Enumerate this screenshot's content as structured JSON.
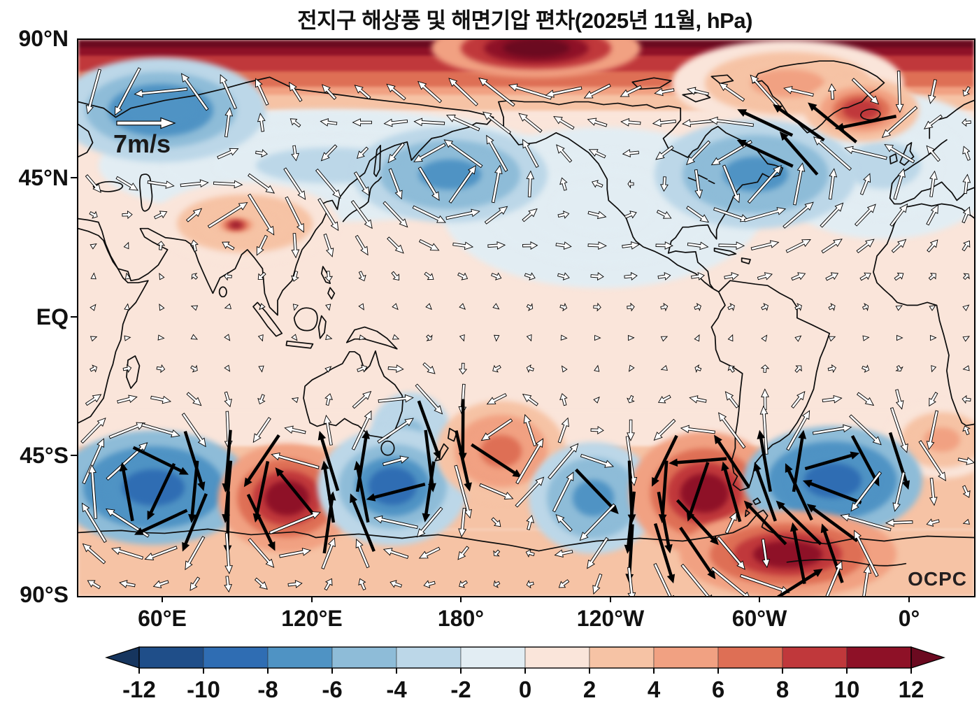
{
  "title": "전지구 해상풍 및 해면기압 편차(2025년 11월, hPa)",
  "map": {
    "source_label": "OCPC",
    "reference_vector_label": "7m/s"
  },
  "axes": {
    "lat_ticks": [
      "90°N",
      "45°N",
      "EQ",
      "45°S",
      "90°S"
    ],
    "lon_ticks": [
      "60°E",
      "120°E",
      "180°",
      "120°W",
      "60°W",
      "0°"
    ]
  },
  "colorbar": {
    "unit": "hPa",
    "levels": [
      -12,
      -10,
      -8,
      -6,
      -4,
      -2,
      0,
      2,
      4,
      6,
      8,
      10,
      12
    ],
    "tick_labels": [
      "-12",
      "-10",
      "-8",
      "-6",
      "-4",
      "-2",
      "0",
      "2",
      "4",
      "6",
      "8",
      "10",
      "12"
    ],
    "colors": [
      "#16355e",
      "#1f4e89",
      "#2f6db3",
      "#4f93c4",
      "#8ebcd8",
      "#bcd7e8",
      "#e2edf3",
      "#fae5da",
      "#f6c3a5",
      "#f1a182",
      "#de6f55",
      "#c0383b",
      "#8e1127",
      "#6b0a20"
    ]
  },
  "chart_data": {
    "type": "heatmap",
    "title": "전지구 해상풍 및 해면기압 편차(2025년 11월, hPa)",
    "variable": "sea level pressure anomaly (hPa) with sea-surface wind anomaly vectors",
    "period": "2025년 11월",
    "units": "hPa",
    "value_range": [
      -12,
      12
    ],
    "legend_position": "bottom",
    "grid": false,
    "lat_ticks": [
      "90°N",
      "45°N",
      "EQ",
      "45°S",
      "90°S"
    ],
    "lon_ticks": [
      "60°E",
      "120°E",
      "180°",
      "120°W",
      "60°W",
      "0°"
    ],
    "wind_reference_speed_ms": 7,
    "bands": [
      {
        "id": "arctic-high-band",
        "y0_pct": 0,
        "y1_pct": 14.1,
        "value_from": 13,
        "value_to": 0.5
      },
      {
        "id": "southern-ocean-salmon-band",
        "y0_pct": 66.7,
        "y1_pct": 88.1,
        "value_from": 1.5,
        "value_to": 3
      },
      {
        "id": "antarctic-high-band",
        "y0_pct": 88.1,
        "y1_pct": 100,
        "value_from": 3.5,
        "value_to": 3.5
      }
    ],
    "anomaly_centers": [
      {
        "id": "siberia-low-weak",
        "x_pct": 28.1,
        "y_pct": 22.6,
        "rx_pct": 25.8,
        "ry_pct": 10.1,
        "value_hpa": -2.5
      },
      {
        "id": "ne-pacific-low-weak",
        "x_pct": 58.5,
        "y_pct": 30.2,
        "rx_pct": 18.0,
        "ry_pct": 14.5,
        "value_hpa": -2
      },
      {
        "id": "europe-low-weak",
        "x_pct": 89.8,
        "y_pct": 22.6,
        "rx_pct": 13.3,
        "ry_pct": 13.2,
        "value_hpa": -2.5
      },
      {
        "id": "greenland-high",
        "x_pct": 79.2,
        "y_pct": 7.8,
        "rx_pct": 12.9,
        "ry_pct": 7.8,
        "value_hpa": 4
      },
      {
        "id": "central-asia-high",
        "x_pct": 18.6,
        "y_pct": 33.0,
        "rx_pct": 10.5,
        "ry_pct": 7.3,
        "value_hpa": 3.5
      },
      {
        "id": "south-africa-high-weak",
        "x_pct": 96.4,
        "y_pct": 71.9,
        "rx_pct": 6.4,
        "ry_pct": 7.0,
        "value_hpa": 4
      },
      {
        "id": "tasman-low-weak",
        "x_pct": 37.1,
        "y_pct": 70.7,
        "rx_pct": 4.5,
        "ry_pct": 7.3,
        "value_hpa": -5
      },
      {
        "id": "barents-scandinavia-low",
        "x_pct": 9.2,
        "y_pct": 12.6,
        "rx_pct": 11.7,
        "ry_pct": 9.4,
        "value_hpa": -8
      },
      {
        "id": "north-pacific-low",
        "x_pct": 41.5,
        "y_pct": 24.2,
        "rx_pct": 10.9,
        "ry_pct": 8.6,
        "value_hpa": -6.5
      },
      {
        "id": "northwest-atlantic-low",
        "x_pct": 75.6,
        "y_pct": 24.2,
        "rx_pct": 11.3,
        "ry_pct": 9.8,
        "value_hpa": -7.5
      },
      {
        "id": "iceland-greenland-high",
        "x_pct": 87.4,
        "y_pct": 12.6,
        "rx_pct": 6.4,
        "ry_pct": 5.8,
        "value_hpa": 8
      },
      {
        "id": "tibet-high-spot",
        "x_pct": 17.6,
        "y_pct": 33.3,
        "rx_pct": 1.9,
        "ry_pct": 1.3,
        "value_hpa": 10
      },
      {
        "id": "arctic-polar-high-core",
        "x_pct": 51.1,
        "y_pct": 1.5,
        "rx_pct": 11.7,
        "ry_pct": 5.3,
        "value_hpa": 13
      },
      {
        "id": "south-indian-west-low",
        "x_pct": 8.4,
        "y_pct": 80.5,
        "rx_pct": 10.9,
        "ry_pct": 10.3,
        "value_hpa": -10
      },
      {
        "id": "south-indian-east-high",
        "x_pct": 23.3,
        "y_pct": 82.4,
        "rx_pct": 7.7,
        "ry_pct": 9.8,
        "value_hpa": 11
      },
      {
        "id": "south-of-australia-low",
        "x_pct": 35.1,
        "y_pct": 80.3,
        "rx_pct": 8.4,
        "ry_pct": 10.6,
        "value_hpa": -8.5
      },
      {
        "id": "east-of-new-zealand-high",
        "x_pct": 47.2,
        "y_pct": 74.0,
        "rx_pct": 7.2,
        "ry_pct": 9.1,
        "value_hpa": 7
      },
      {
        "id": "south-pacific-central-low",
        "x_pct": 57.5,
        "y_pct": 82.4,
        "rx_pct": 7.2,
        "ry_pct": 10.1,
        "value_hpa": -7
      },
      {
        "id": "southeast-pacific-high",
        "x_pct": 69.9,
        "y_pct": 81.5,
        "rx_pct": 8.4,
        "ry_pct": 11.1,
        "value_hpa": 10.5
      },
      {
        "id": "south-atlantic-low",
        "x_pct": 84.2,
        "y_pct": 79.2,
        "rx_pct": 10.0,
        "ry_pct": 9.8,
        "value_hpa": -10
      },
      {
        "id": "weddell-antarctic-high",
        "x_pct": 79.2,
        "y_pct": 92.5,
        "rx_pct": 12.1,
        "ry_pct": 7.8,
        "value_hpa": 10
      }
    ]
  }
}
